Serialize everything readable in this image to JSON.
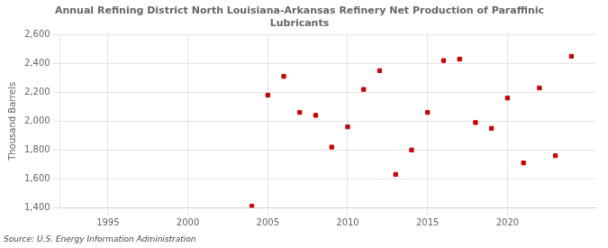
{
  "chart_data": {
    "type": "scatter",
    "title": "Annual Refining District North Louisiana-Arkansas Refinery Net Production of Paraffinic\nLubricants",
    "ylabel": "Thousand Barrels",
    "source": "Source: U.S. Energy Information Administration",
    "x": [
      2004,
      2005,
      2006,
      2007,
      2008,
      2009,
      2010,
      2011,
      2012,
      2013,
      2014,
      2015,
      2016,
      2017,
      2018,
      2019,
      2020,
      2021,
      2022,
      2023,
      2024
    ],
    "values": [
      1410,
      2180,
      2310,
      2060,
      2040,
      1820,
      1960,
      2220,
      2350,
      1630,
      1800,
      2060,
      2420,
      2430,
      1990,
      1950,
      2160,
      1710,
      2230,
      1760,
      2450
    ],
    "color": "#cc0000",
    "marker": "square",
    "xlim": [
      1992,
      2025.5
    ],
    "xticks": [
      1995,
      2000,
      2005,
      2010,
      2015,
      2020
    ],
    "ylim": [
      1400,
      2600
    ],
    "yticks": [
      {
        "value": 1400,
        "label": "1,400"
      },
      {
        "value": 1600,
        "label": "1,600"
      },
      {
        "value": 1800,
        "label": "1,800"
      },
      {
        "value": 2000,
        "label": "2,000"
      },
      {
        "value": 2200,
        "label": "2,200"
      },
      {
        "value": 2400,
        "label": "2,400"
      },
      {
        "value": 2600,
        "label": "2,600"
      }
    ],
    "grid": true
  }
}
